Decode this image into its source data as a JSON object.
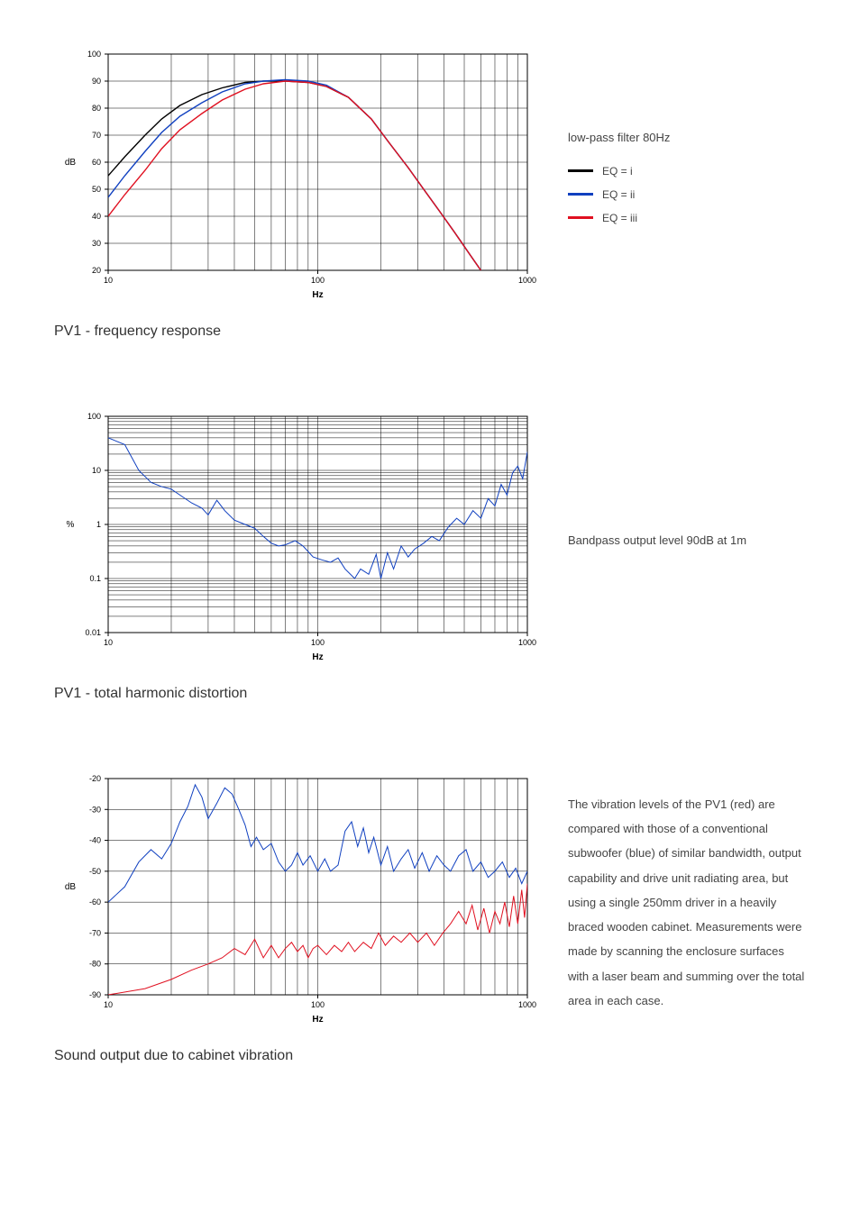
{
  "chart1": {
    "title": "PV1 - frequency response",
    "type": "line",
    "ylabel": "dB",
    "xlabel": "Hz",
    "xscale": "log",
    "xlim": [
      10,
      1000
    ],
    "ylim": [
      20,
      100
    ],
    "ytick_step": 10,
    "yticks": [
      20,
      30,
      40,
      50,
      60,
      70,
      80,
      90,
      100
    ],
    "xticks": [
      10,
      100,
      1000
    ],
    "grid_color": "#000000",
    "grid_width": 0.5,
    "background_color": "#ffffff",
    "label_fontsize": 10,
    "axis_fontsize": 9,
    "side_title": "low-pass filter 80Hz",
    "legend_items": [
      {
        "color": "#000000",
        "label": "EQ = i"
      },
      {
        "color": "#1040c0",
        "label": "EQ = ii"
      },
      {
        "color": "#e01020",
        "label": "EQ = iii"
      }
    ],
    "series": [
      {
        "color": "#000000",
        "width": 1.4,
        "data": [
          [
            10,
            55
          ],
          [
            12,
            62
          ],
          [
            15,
            70
          ],
          [
            18,
            76
          ],
          [
            22,
            81
          ],
          [
            28,
            85
          ],
          [
            35,
            87.5
          ],
          [
            45,
            89.5
          ],
          [
            55,
            90
          ],
          [
            70,
            90
          ],
          [
            90,
            89.5
          ],
          [
            110,
            88
          ],
          [
            140,
            84
          ],
          [
            180,
            76
          ],
          [
            220,
            67
          ],
          [
            270,
            58
          ],
          [
            320,
            50
          ],
          [
            380,
            42
          ],
          [
            450,
            34
          ],
          [
            530,
            26
          ],
          [
            600,
            20
          ]
        ]
      },
      {
        "color": "#1040c0",
        "width": 1.4,
        "data": [
          [
            10,
            47
          ],
          [
            12,
            55
          ],
          [
            15,
            64
          ],
          [
            18,
            71
          ],
          [
            22,
            77
          ],
          [
            28,
            82
          ],
          [
            35,
            86
          ],
          [
            45,
            89
          ],
          [
            55,
            90
          ],
          [
            70,
            90.5
          ],
          [
            90,
            90
          ],
          [
            110,
            88.5
          ],
          [
            140,
            84
          ],
          [
            180,
            76
          ],
          [
            220,
            67
          ],
          [
            270,
            58
          ],
          [
            320,
            50
          ],
          [
            380,
            42
          ],
          [
            450,
            34
          ],
          [
            530,
            26
          ],
          [
            600,
            20
          ]
        ]
      },
      {
        "color": "#e01020",
        "width": 1.4,
        "data": [
          [
            10,
            40
          ],
          [
            12,
            48
          ],
          [
            15,
            57
          ],
          [
            18,
            65
          ],
          [
            22,
            72
          ],
          [
            28,
            78
          ],
          [
            35,
            83
          ],
          [
            45,
            87
          ],
          [
            55,
            89
          ],
          [
            70,
            90
          ],
          [
            90,
            89.5
          ],
          [
            110,
            88
          ],
          [
            140,
            84
          ],
          [
            180,
            76
          ],
          [
            220,
            67
          ],
          [
            270,
            58
          ],
          [
            320,
            50
          ],
          [
            380,
            42
          ],
          [
            450,
            34
          ],
          [
            530,
            26
          ],
          [
            600,
            20
          ]
        ]
      }
    ]
  },
  "chart2": {
    "title": "PV1 - total harmonic distortion",
    "type": "line",
    "ylabel": "%",
    "xlabel": "Hz",
    "xscale": "log",
    "yscale": "log",
    "xlim": [
      10,
      1000
    ],
    "ylim": [
      0.01,
      100
    ],
    "yticks": [
      0.01,
      0.1,
      1,
      10,
      100
    ],
    "ytick_labels": [
      "0.01",
      "0.1",
      "1",
      "10",
      "100"
    ],
    "xticks": [
      10,
      100,
      1000
    ],
    "grid_color": "#000000",
    "grid_width": 0.5,
    "background_color": "#ffffff",
    "label_fontsize": 10,
    "axis_fontsize": 9,
    "side_text": "Bandpass output level 90dB at 1m",
    "series": [
      {
        "color": "#1040c0",
        "width": 1.0,
        "data": [
          [
            10,
            40
          ],
          [
            12,
            30
          ],
          [
            14,
            10
          ],
          [
            16,
            6
          ],
          [
            18,
            5
          ],
          [
            20,
            4.5
          ],
          [
            22,
            3.5
          ],
          [
            25,
            2.5
          ],
          [
            28,
            2
          ],
          [
            30,
            1.5
          ],
          [
            33,
            2.8
          ],
          [
            36,
            1.8
          ],
          [
            40,
            1.2
          ],
          [
            45,
            1.0
          ],
          [
            50,
            0.85
          ],
          [
            55,
            0.6
          ],
          [
            60,
            0.45
          ],
          [
            65,
            0.4
          ],
          [
            70,
            0.42
          ],
          [
            78,
            0.5
          ],
          [
            85,
            0.4
          ],
          [
            95,
            0.25
          ],
          [
            105,
            0.22
          ],
          [
            115,
            0.2
          ],
          [
            125,
            0.24
          ],
          [
            135,
            0.15
          ],
          [
            150,
            0.1
          ],
          [
            160,
            0.15
          ],
          [
            175,
            0.12
          ],
          [
            190,
            0.28
          ],
          [
            200,
            0.1
          ],
          [
            215,
            0.3
          ],
          [
            230,
            0.15
          ],
          [
            250,
            0.4
          ],
          [
            270,
            0.25
          ],
          [
            290,
            0.35
          ],
          [
            320,
            0.45
          ],
          [
            350,
            0.6
          ],
          [
            380,
            0.5
          ],
          [
            420,
            0.9
          ],
          [
            460,
            1.3
          ],
          [
            500,
            1.0
          ],
          [
            550,
            1.8
          ],
          [
            600,
            1.3
          ],
          [
            650,
            3.0
          ],
          [
            700,
            2.2
          ],
          [
            750,
            5.5
          ],
          [
            800,
            3.5
          ],
          [
            850,
            9.0
          ],
          [
            900,
            12.0
          ],
          [
            950,
            7.0
          ],
          [
            1000,
            22.0
          ]
        ]
      }
    ]
  },
  "chart3": {
    "title": "Sound output due to cabinet vibration",
    "type": "line",
    "ylabel": "dB",
    "xlabel": "Hz",
    "xscale": "log",
    "xlim": [
      10,
      1000
    ],
    "ylim": [
      -90,
      -20
    ],
    "ytick_step": 10,
    "yticks": [
      -90,
      -80,
      -70,
      -60,
      -50,
      -40,
      -30,
      -20
    ],
    "xticks": [
      10,
      100,
      1000
    ],
    "grid_color": "#000000",
    "grid_width": 0.5,
    "background_color": "#ffffff",
    "label_fontsize": 10,
    "axis_fontsize": 9,
    "side_text": "The vibration levels of the PV1 (red) are compared with those of a conventional subwoofer (blue) of similar bandwidth, output capability and drive unit radiating area, but using a single 250mm driver in a heavily braced wooden cabinet. Measurements were made by scanning the enclosure surfaces with a laser beam and summing over the total area in each case.",
    "series": [
      {
        "color": "#1040c0",
        "width": 1.0,
        "data": [
          [
            10,
            -60
          ],
          [
            12,
            -55
          ],
          [
            14,
            -47
          ],
          [
            16,
            -43
          ],
          [
            18,
            -46
          ],
          [
            20,
            -41
          ],
          [
            22,
            -34
          ],
          [
            24,
            -29
          ],
          [
            26,
            -22
          ],
          [
            28,
            -26
          ],
          [
            30,
            -33
          ],
          [
            33,
            -28
          ],
          [
            36,
            -23
          ],
          [
            39,
            -25
          ],
          [
            42,
            -30
          ],
          [
            45,
            -35
          ],
          [
            48,
            -42
          ],
          [
            51,
            -39
          ],
          [
            55,
            -43
          ],
          [
            60,
            -41
          ],
          [
            65,
            -47
          ],
          [
            70,
            -50
          ],
          [
            75,
            -48
          ],
          [
            80,
            -44
          ],
          [
            85,
            -48
          ],
          [
            92,
            -45
          ],
          [
            100,
            -50
          ],
          [
            108,
            -46
          ],
          [
            115,
            -50
          ],
          [
            125,
            -48
          ],
          [
            135,
            -37
          ],
          [
            145,
            -34
          ],
          [
            155,
            -42
          ],
          [
            165,
            -36
          ],
          [
            175,
            -44
          ],
          [
            185,
            -39
          ],
          [
            200,
            -48
          ],
          [
            215,
            -42
          ],
          [
            230,
            -50
          ],
          [
            250,
            -46
          ],
          [
            270,
            -43
          ],
          [
            290,
            -49
          ],
          [
            315,
            -44
          ],
          [
            340,
            -50
          ],
          [
            370,
            -45
          ],
          [
            400,
            -48
          ],
          [
            430,
            -50
          ],
          [
            470,
            -45
          ],
          [
            510,
            -43
          ],
          [
            550,
            -50
          ],
          [
            600,
            -47
          ],
          [
            650,
            -52
          ],
          [
            700,
            -50
          ],
          [
            760,
            -47
          ],
          [
            820,
            -52
          ],
          [
            880,
            -49
          ],
          [
            940,
            -54
          ],
          [
            1000,
            -50
          ]
        ]
      },
      {
        "color": "#e01020",
        "width": 1.0,
        "data": [
          [
            10,
            -90
          ],
          [
            15,
            -88
          ],
          [
            20,
            -85
          ],
          [
            25,
            -82
          ],
          [
            30,
            -80
          ],
          [
            35,
            -78
          ],
          [
            40,
            -75
          ],
          [
            45,
            -77
          ],
          [
            50,
            -72
          ],
          [
            55,
            -78
          ],
          [
            60,
            -74
          ],
          [
            65,
            -78
          ],
          [
            70,
            -75
          ],
          [
            75,
            -73
          ],
          [
            80,
            -76
          ],
          [
            85,
            -74
          ],
          [
            90,
            -78
          ],
          [
            95,
            -75
          ],
          [
            100,
            -74
          ],
          [
            110,
            -77
          ],
          [
            120,
            -74
          ],
          [
            130,
            -76
          ],
          [
            140,
            -73
          ],
          [
            150,
            -76
          ],
          [
            165,
            -73
          ],
          [
            180,
            -75
          ],
          [
            195,
            -70
          ],
          [
            210,
            -74
          ],
          [
            230,
            -71
          ],
          [
            250,
            -73
          ],
          [
            275,
            -70
          ],
          [
            300,
            -73
          ],
          [
            330,
            -70
          ],
          [
            360,
            -74
          ],
          [
            395,
            -70
          ],
          [
            430,
            -67
          ],
          [
            470,
            -63
          ],
          [
            510,
            -67
          ],
          [
            545,
            -61
          ],
          [
            580,
            -69
          ],
          [
            620,
            -62
          ],
          [
            660,
            -70
          ],
          [
            700,
            -63
          ],
          [
            740,
            -67
          ],
          [
            780,
            -60
          ],
          [
            820,
            -68
          ],
          [
            860,
            -58
          ],
          [
            900,
            -67
          ],
          [
            940,
            -56
          ],
          [
            970,
            -65
          ],
          [
            1000,
            -54
          ]
        ]
      }
    ]
  }
}
